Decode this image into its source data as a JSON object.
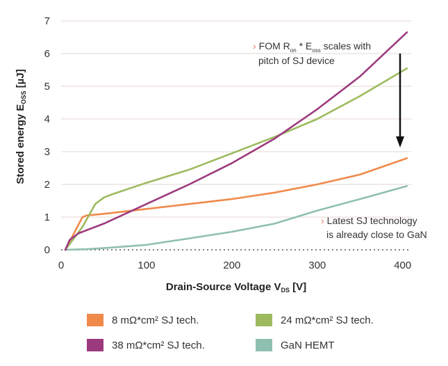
{
  "chart_data": {
    "type": "line",
    "xlabel": {
      "main": "Drain-Source Voltage V",
      "sub": "DS",
      "unit": " [V]"
    },
    "ylabel": {
      "main": "Stored energy E",
      "sub": "OSS",
      "unit": " [µJ]"
    },
    "xlim": [
      0,
      410
    ],
    "ylim": [
      0,
      7
    ],
    "xticks": [
      0,
      100,
      200,
      300,
      400
    ],
    "yticks": [
      0,
      1,
      2,
      3,
      4,
      5,
      6,
      7
    ],
    "grid": "horizontal",
    "series": [
      {
        "name": "8 mΩ*cm² SJ tech.",
        "color": "#f08a4b",
        "x": [
          5,
          15,
          25,
          30,
          50,
          100,
          150,
          200,
          250,
          300,
          350,
          405
        ],
        "y": [
          0,
          0.5,
          1.0,
          1.05,
          1.1,
          1.25,
          1.4,
          1.55,
          1.75,
          2.0,
          2.3,
          2.8
        ]
      },
      {
        "name": "24 mΩ*cm² SJ tech.",
        "color": "#9dbb5e",
        "x": [
          5,
          25,
          40,
          50,
          60,
          100,
          150,
          200,
          250,
          300,
          350,
          405
        ],
        "y": [
          0,
          0.7,
          1.4,
          1.6,
          1.7,
          2.05,
          2.45,
          2.95,
          3.45,
          4.0,
          4.7,
          5.55
        ]
      },
      {
        "name": "38 mΩ*cm² SJ tech.",
        "color": "#9c3a7e",
        "x": [
          5,
          10,
          20,
          50,
          100,
          150,
          200,
          250,
          300,
          350,
          405
        ],
        "y": [
          0,
          0.3,
          0.5,
          0.8,
          1.4,
          2.0,
          2.65,
          3.4,
          4.3,
          5.3,
          6.65
        ]
      },
      {
        "name": "GaN HEMT",
        "color": "#8fbfb0",
        "x": [
          5,
          30,
          50,
          100,
          150,
          200,
          250,
          300,
          350,
          405
        ],
        "y": [
          0,
          0.02,
          0.05,
          0.15,
          0.35,
          0.55,
          0.8,
          1.2,
          1.55,
          1.95
        ]
      }
    ],
    "annotations": [
      {
        "marker": "›",
        "lines": [
          {
            "a": "FOM R",
            "s1": "on",
            "b": " * E",
            "s2": "oss",
            "c": " scales with"
          },
          "pitch of SJ device"
        ]
      },
      {
        "marker": "›",
        "lines": [
          "Latest SJ technology",
          "is already close to GaN"
        ]
      }
    ]
  }
}
